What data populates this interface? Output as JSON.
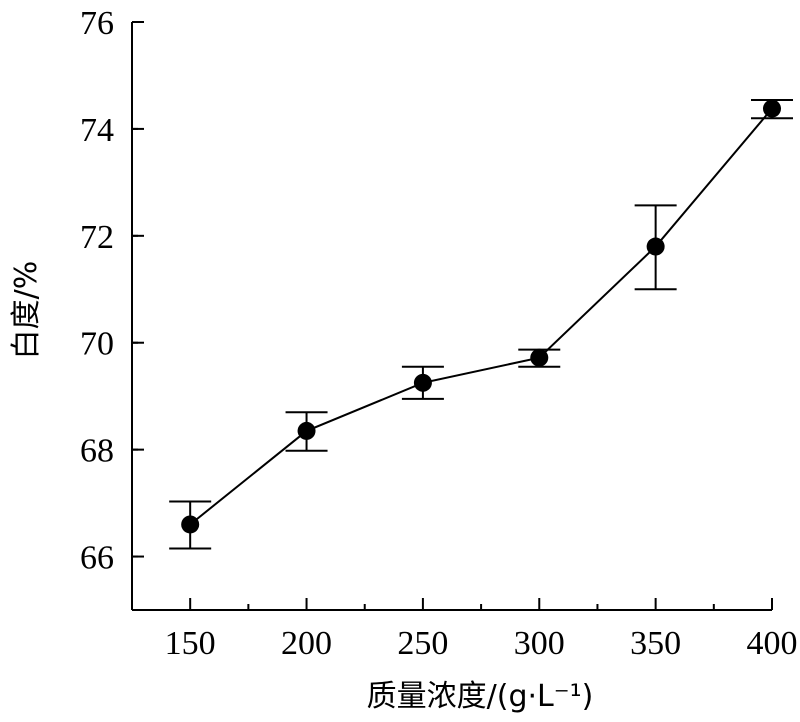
{
  "chart_data": {
    "type": "line",
    "title": "",
    "xlabel": "质量浓度/(g·L⁻¹)",
    "ylabel": "白度/%",
    "x": [
      150,
      200,
      250,
      300,
      350,
      400
    ],
    "series": [
      {
        "name": "",
        "values": [
          66.6,
          68.35,
          69.25,
          69.72,
          71.8,
          74.38
        ],
        "error_low": [
          66.15,
          67.98,
          68.95,
          69.55,
          71.0,
          74.2
        ],
        "error_high": [
          67.03,
          68.7,
          69.55,
          69.87,
          72.57,
          74.54
        ]
      }
    ],
    "xticks": [
      150,
      200,
      250,
      300,
      350,
      400
    ],
    "yticks": [
      66,
      68,
      70,
      72,
      74,
      76
    ],
    "xlim": [
      125,
      400
    ],
    "ylim": [
      65,
      76
    ],
    "grid": false,
    "legend": "none",
    "colors": {
      "line": "#000000",
      "marker": "#000000",
      "axis": "#000000"
    }
  }
}
